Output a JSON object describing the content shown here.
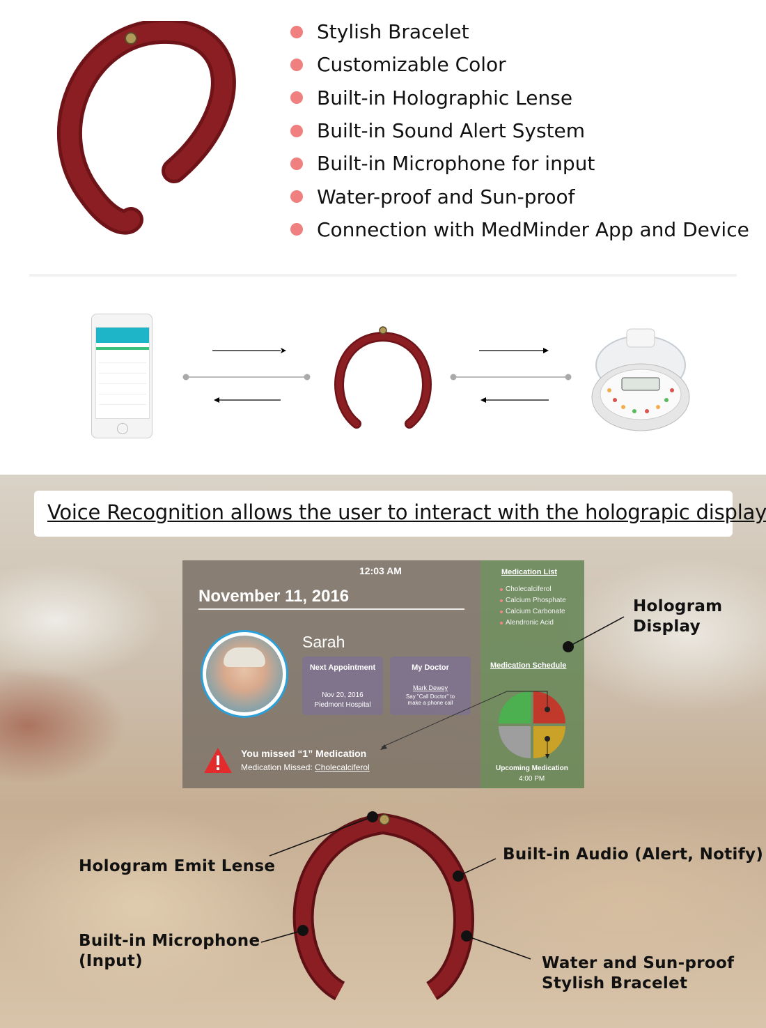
{
  "features": [
    "Stylish Bracelet",
    "Customizable Color",
    "Built-in Holographic Lense",
    "Built-in Sound Alert System",
    "Built-in Microphone for input",
    "Water-proof and Sun-proof",
    "Connection with MedMinder App and Device"
  ],
  "banner": "Voice Recognition allows the user to interact with the holograpic display",
  "hologram": {
    "time": "12:03 AM",
    "date": "November 11, 2016",
    "name": "Sarah",
    "next_appointment": {
      "title": "Next Appointment",
      "date": "Nov 20, 2016",
      "place": "Piedmont Hospital"
    },
    "my_doctor": {
      "title": "My Doctor",
      "name": "Mark Dewey",
      "hint_line1": "Say \"Call Doctor\" to",
      "hint_line2": "make a phone call"
    },
    "alert_title": "You missed “1” Medication",
    "alert_prefix": "Medication Missed: ",
    "alert_med": "Cholecalciferol",
    "medication_list_title": "Medication List",
    "medications": [
      "Cholecalciferol",
      "Calcium Phosphate",
      "Calcium Carbonate",
      "Alendronic Acid"
    ],
    "schedule_title": "Medication Schedule",
    "upcoming_label": "Upcoming Medication",
    "upcoming_time": "4:00 PM",
    "schedule_colors": [
      "#4caf50",
      "#c0392b",
      "#9e9e9e",
      "#c9a227"
    ]
  },
  "callouts": {
    "hologram_display_line1": "Hologram",
    "hologram_display_line2": "Display",
    "emit_lense": "Hologram Emit Lense",
    "audio": "Built-in Audio (Alert, Notify)",
    "mic_line1": "Built-in Microphone",
    "mic_line2": "(Input)",
    "water_line1": "Water and Sun-proof",
    "water_line2": "Stylish Bracelet"
  },
  "colors": {
    "bracelet": "#8b1e23",
    "bullet": "#f08080",
    "accent_blue": "#2a9fd8"
  }
}
